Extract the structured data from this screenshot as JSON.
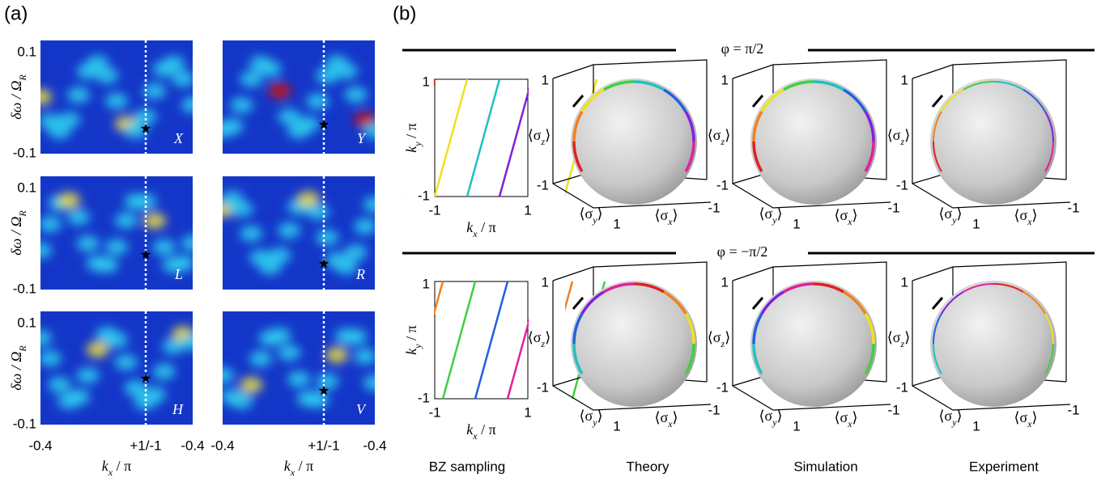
{
  "panel_a": {
    "label": "(a)",
    "y_label": [
      "δω / Ω",
      "R"
    ],
    "x_label": [
      "k",
      "x",
      " / π"
    ],
    "y_ticks": [
      "0.1",
      "-0.1"
    ],
    "x_ticks": [
      "-0.4",
      "+1/-1",
      "-0.4"
    ],
    "maps": [
      "X",
      "Y",
      "L",
      "R",
      "H",
      "V"
    ]
  },
  "panel_b": {
    "label": "(b)",
    "rows": [
      "φ = π/2",
      "φ = −π/2"
    ],
    "columns": [
      "BZ sampling",
      "Theory",
      "Simulation",
      "Experiment"
    ],
    "bz": {
      "x_label": [
        "k",
        "x",
        " / π"
      ],
      "y_label": [
        "k",
        "y",
        " / π"
      ],
      "ticks": [
        "-1",
        "1"
      ]
    },
    "sphere": {
      "z_label": [
        "⟨σ",
        "z",
        "⟩"
      ],
      "y_label": [
        "⟨σ",
        "y",
        "⟩"
      ],
      "x_label": [
        "⟨σ",
        "x",
        "⟩"
      ],
      "ticks": [
        "1",
        "-1"
      ]
    }
  }
}
